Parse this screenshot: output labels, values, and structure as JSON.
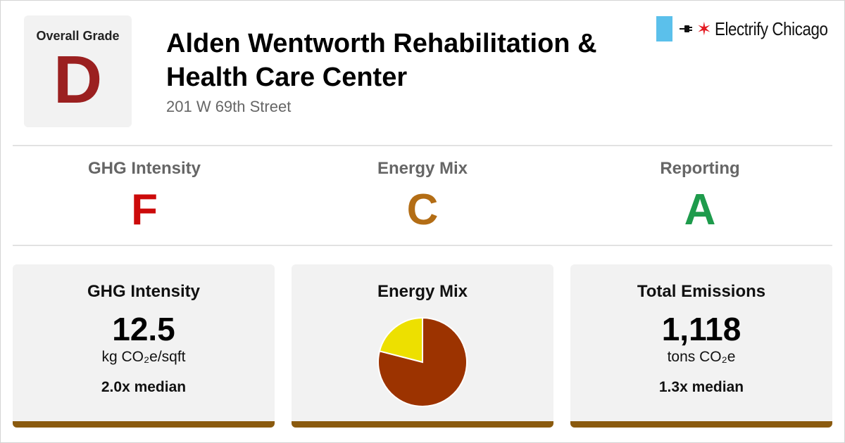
{
  "header": {
    "overall_label": "Overall Grade",
    "overall_grade": "D",
    "building_name": "Alden Wentworth Rehabilitation & Health Care Center",
    "address": "201 W 69th Street",
    "brand_name": "Electrify Chicago"
  },
  "grades": [
    {
      "label": "GHG Intensity",
      "grade": "F",
      "color": "#cc0a0a"
    },
    {
      "label": "Energy Mix",
      "grade": "C",
      "color": "#b36d15"
    },
    {
      "label": "Reporting",
      "grade": "A",
      "color": "#1e9b4c"
    }
  ],
  "cards": {
    "ghg": {
      "heading": "GHG Intensity",
      "value": "12.5",
      "unit": "kg CO₂e/sqft",
      "median": "2.0x median"
    },
    "energy_mix": {
      "heading": "Energy Mix"
    },
    "emissions": {
      "heading": "Total Emissions",
      "value": "1,118",
      "unit": "tons CO₂e",
      "median": "1.3x median"
    }
  },
  "colors": {
    "accent_bar": "#8a5a0e",
    "overall_grade": "#9b2020",
    "brand_flag": "#5bc0eb",
    "brand_star": "#e31b23"
  },
  "chart_data": {
    "type": "pie",
    "slices": [
      {
        "fraction": 0.79,
        "color": "#9c3300"
      },
      {
        "fraction": 0.21,
        "color": "#ede000"
      }
    ]
  }
}
